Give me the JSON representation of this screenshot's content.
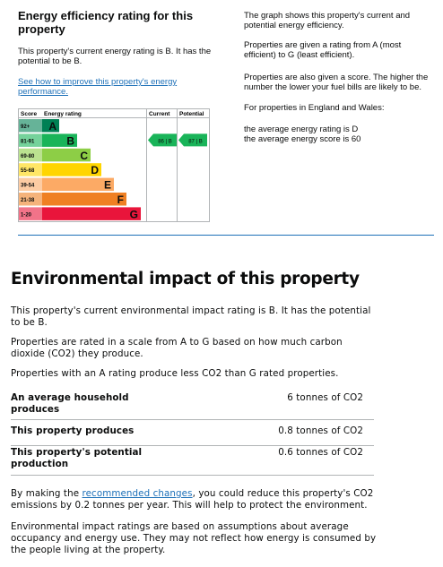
{
  "energy": {
    "title": "Energy efficiency rating for this property",
    "rating_text": "This property's current energy rating is B. It has the potential to be B.",
    "link": "See how to improve this property's energy performance.",
    "chart": {
      "headers": [
        "Score",
        "Energy rating",
        "Current",
        "Potential"
      ],
      "bands": [
        {
          "score": "92+",
          "letter": "A",
          "color": "#008054"
        },
        {
          "score": "81-91",
          "letter": "B",
          "color": "#19b459"
        },
        {
          "score": "69-80",
          "letter": "C",
          "color": "#8dce46"
        },
        {
          "score": "55-68",
          "letter": "D",
          "color": "#ffd500"
        },
        {
          "score": "39-54",
          "letter": "E",
          "color": "#fcaa65"
        },
        {
          "score": "21-38",
          "letter": "F",
          "color": "#ef8023"
        },
        {
          "score": "1-20",
          "letter": "G",
          "color": "#e9153b"
        }
      ],
      "current": "86 | B",
      "potential": "87 | B"
    },
    "info": [
      "The graph shows this property's current and potential energy efficiency.",
      "Properties are given a rating from A (most efficient) to G (least efficient).",
      "Properties are also given a score. The higher the number the lower your fuel bills are likely to be.",
      "For properties in England and Wales:",
      "the average energy rating is D",
      "the average energy score is 60"
    ]
  },
  "environment": {
    "title": "Environmental impact of this property",
    "paragraphs": [
      "This property's current environmental impact rating is B. It has the potential to be B.",
      "Properties are rated in a scale from A to G based on how much carbon dioxide (CO2) they produce.",
      "Properties with an A rating produce less CO2 than G rated properties."
    ],
    "table": [
      [
        "An average household produces",
        "6 tonnes of CO2"
      ],
      [
        "This property produces",
        "0.8 tonnes of CO2"
      ],
      [
        "This property's potential production",
        "0.6 tonnes of CO2"
      ]
    ],
    "reduce": {
      "before": "By making the ",
      "link": "recommended changes",
      "after": ", you could reduce this property's CO2 emissions by 0.2 tonnes per year. This will help to protect the environment."
    },
    "closing": "Environmental impact ratings are based on assumptions about average occupancy and energy use. They may not reflect how energy is consumed by the people living at the property."
  }
}
